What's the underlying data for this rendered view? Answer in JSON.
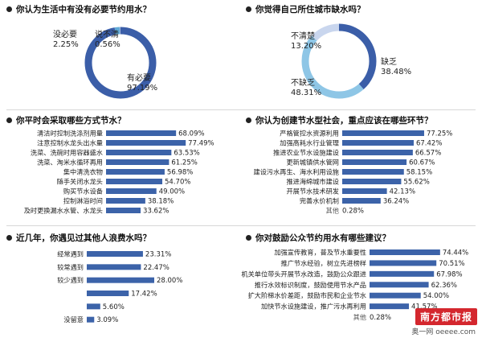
{
  "chart_data": [
    {
      "type": "pie",
      "title": "你认为生活中有没有必要节约用水？",
      "slices": [
        {
          "label": "有必要",
          "value": 97.19,
          "display": "97.19%"
        },
        {
          "label": "没必要",
          "value": 2.25,
          "display": "2.25%"
        },
        {
          "label": "说不清",
          "value": 0.56,
          "display": "0.56%"
        }
      ],
      "colors": [
        "#3b5ea8",
        "#5fa9d6",
        "#9fb6de"
      ]
    },
    {
      "type": "pie",
      "title": "你觉得自己所住城市缺水吗？",
      "slices": [
        {
          "label": "缺乏",
          "value": 38.48,
          "display": "38.48%"
        },
        {
          "label": "不缺乏",
          "value": 48.31,
          "display": "48.31%"
        },
        {
          "label": "不清楚",
          "value": 13.2,
          "display": "13.20%"
        }
      ],
      "colors": [
        "#3b5ea8",
        "#8ec6e6",
        "#c9d6ee"
      ]
    },
    {
      "type": "bar",
      "title": "你平时会采取哪些方式节水？",
      "categories": [
        "清洁时控制洗涤剂用量",
        "注意控制水龙头出水量",
        "洗菜、洗碗时用容器盛水",
        "洗菜、淘米水循环再用",
        "集中清洗衣物",
        "随手关闭水龙头",
        "购买节水设备",
        "控制淋浴时间",
        "及时更换漏水水管、水龙头"
      ],
      "values": [
        68.09,
        77.49,
        63.53,
        61.25,
        56.98,
        54.7,
        49.0,
        38.18,
        33.62
      ],
      "labels": [
        "68.09%",
        "77.49%",
        "63.53%",
        "61.25%",
        "56.98%",
        "54.70%",
        "49.00%",
        "38.18%",
        "33.62%"
      ],
      "xlim": [
        0,
        100
      ]
    },
    {
      "type": "bar",
      "title": "你认为创建节水型社会，重点应该在哪些环节？",
      "categories": [
        "严格管控水资源利用",
        "加强高耗水行业管理",
        "推进农业节水设施建设",
        "更新城镇供水管网",
        "建设污水再生、海水利用设施",
        "推进海绵城市建设",
        "开展节水技术研发",
        "完善水价机制",
        "其他"
      ],
      "values": [
        77.25,
        67.42,
        66.57,
        60.67,
        58.15,
        55.62,
        42.13,
        36.24,
        0.28
      ],
      "labels": [
        "77.25%",
        "67.42%",
        "66.57%",
        "60.67%",
        "58.15%",
        "55.62%",
        "42.13%",
        "36.24%",
        "0.28%"
      ],
      "xlim": [
        0,
        100
      ]
    },
    {
      "type": "bar",
      "title": "近几年，你遇见过其他人浪费水吗？",
      "categories": [
        "经常遇到",
        "较常遇到",
        "较少遇到",
        "",
        "",
        "没留意"
      ],
      "values": [
        23.31,
        22.47,
        28.0,
        17.42,
        5.6,
        3.09
      ],
      "labels": [
        "23.31%",
        "22.47%",
        "28.00%",
        "17.42%",
        "5.60%",
        "3.09%"
      ],
      "xlim": [
        0,
        100
      ]
    },
    {
      "type": "bar",
      "title": "你对鼓励公众节约用水有哪些建议？",
      "categories": [
        "加强宣传教育，普及节水重要性",
        "推广节水经验，树立先进榜样",
        "机关单位带头开展节水改造，鼓励公众跟进",
        "推行水效标识制度，鼓励使用节水产品",
        "扩大阶梯水价差距，鼓励市民和企业节水",
        "加快节水设施建设，推广污水再利用",
        "其他"
      ],
      "values": [
        74.44,
        70.51,
        67.98,
        62.36,
        54.0,
        41.57,
        0.28
      ],
      "labels": [
        "74.44%",
        "70.51%",
        "67.98%",
        "62.36%",
        "54.00%",
        "41.57%",
        "0.28%"
      ],
      "xlim": [
        0,
        100
      ]
    }
  ],
  "logo": {
    "text": "南方都市报",
    "sub": "奥一网 oeeee.com"
  }
}
